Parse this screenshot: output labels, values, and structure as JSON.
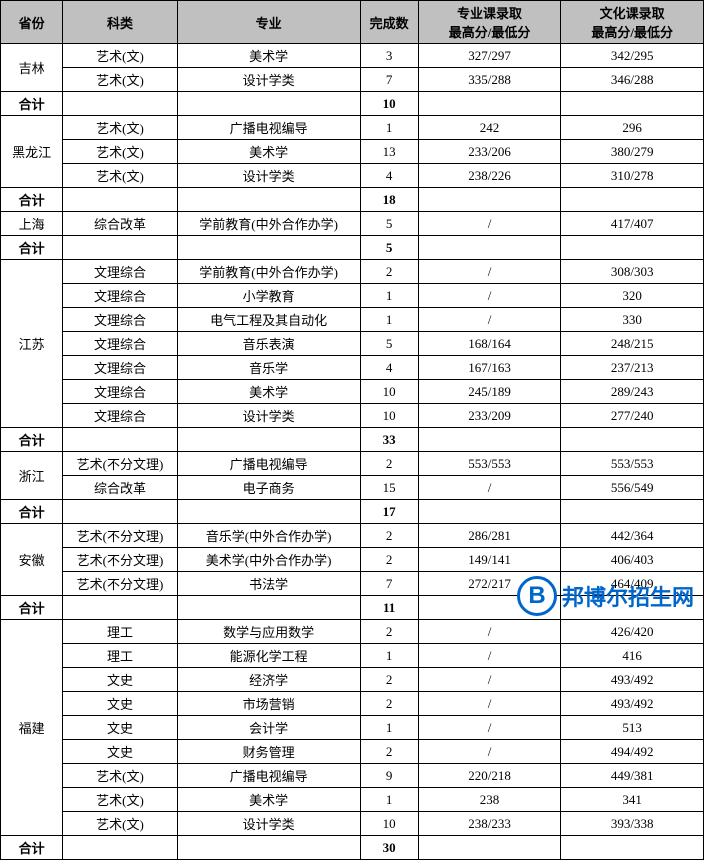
{
  "headers": {
    "province": "省份",
    "category": "科类",
    "major": "专业",
    "count": "完成数",
    "score1": "专业课录取\n最高分/最低分",
    "score2": "文化课录取\n最高分/最低分"
  },
  "subtotal_label": "合计",
  "colors": {
    "header_bg": "#c0c0c0",
    "border": "#000000",
    "watermark": "#0066cc"
  },
  "watermark": {
    "logo": "B",
    "text": "邦博尔招生网"
  },
  "provinces": [
    {
      "name": "吉林",
      "rows": [
        {
          "category": "艺术(文)",
          "major": "美术学",
          "count": "3",
          "s1": "327/297",
          "s2": "342/295"
        },
        {
          "category": "艺术(文)",
          "major": "设计学类",
          "count": "7",
          "s1": "335/288",
          "s2": "346/288"
        }
      ],
      "subtotal": "10"
    },
    {
      "name": "黑龙江",
      "rows": [
        {
          "category": "艺术(文)",
          "major": "广播电视编导",
          "count": "1",
          "s1": "242",
          "s2": "296"
        },
        {
          "category": "艺术(文)",
          "major": "美术学",
          "count": "13",
          "s1": "233/206",
          "s2": "380/279"
        },
        {
          "category": "艺术(文)",
          "major": "设计学类",
          "count": "4",
          "s1": "238/226",
          "s2": "310/278"
        }
      ],
      "subtotal": "18"
    },
    {
      "name": "上海",
      "rows": [
        {
          "category": "综合改革",
          "major": "学前教育(中外合作办学)",
          "count": "5",
          "s1": "/",
          "s2": "417/407"
        }
      ],
      "subtotal": "5"
    },
    {
      "name": "江苏",
      "rows": [
        {
          "category": "文理综合",
          "major": "学前教育(中外合作办学)",
          "count": "2",
          "s1": "/",
          "s2": "308/303"
        },
        {
          "category": "文理综合",
          "major": "小学教育",
          "count": "1",
          "s1": "/",
          "s2": "320"
        },
        {
          "category": "文理综合",
          "major": "电气工程及其自动化",
          "count": "1",
          "s1": "/",
          "s2": "330"
        },
        {
          "category": "文理综合",
          "major": "音乐表演",
          "count": "5",
          "s1": "168/164",
          "s2": "248/215"
        },
        {
          "category": "文理综合",
          "major": "音乐学",
          "count": "4",
          "s1": "167/163",
          "s2": "237/213"
        },
        {
          "category": "文理综合",
          "major": "美术学",
          "count": "10",
          "s1": "245/189",
          "s2": "289/243"
        },
        {
          "category": "文理综合",
          "major": "设计学类",
          "count": "10",
          "s1": "233/209",
          "s2": "277/240"
        }
      ],
      "subtotal": "33"
    },
    {
      "name": "浙江",
      "rows": [
        {
          "category": "艺术(不分文理)",
          "major": "广播电视编导",
          "count": "2",
          "s1": "553/553",
          "s2": "553/553"
        },
        {
          "category": "综合改革",
          "major": "电子商务",
          "count": "15",
          "s1": "/",
          "s2": "556/549"
        }
      ],
      "subtotal": "17"
    },
    {
      "name": "安徽",
      "rows": [
        {
          "category": "艺术(不分文理)",
          "major": "音乐学(中外合作办学)",
          "count": "2",
          "s1": "286/281",
          "s2": "442/364"
        },
        {
          "category": "艺术(不分文理)",
          "major": "美术学(中外合作办学)",
          "count": "2",
          "s1": "149/141",
          "s2": "406/403"
        },
        {
          "category": "艺术(不分文理)",
          "major": "书法学",
          "count": "7",
          "s1": "272/217",
          "s2": "464/409"
        }
      ],
      "subtotal": "11"
    },
    {
      "name": "福建",
      "rows": [
        {
          "category": "理工",
          "major": "数学与应用数学",
          "count": "2",
          "s1": "/",
          "s2": "426/420"
        },
        {
          "category": "理工",
          "major": "能源化学工程",
          "count": "1",
          "s1": "/",
          "s2": "416"
        },
        {
          "category": "文史",
          "major": "经济学",
          "count": "2",
          "s1": "/",
          "s2": "493/492"
        },
        {
          "category": "文史",
          "major": "市场营销",
          "count": "2",
          "s1": "/",
          "s2": "493/492"
        },
        {
          "category": "文史",
          "major": "会计学",
          "count": "1",
          "s1": "/",
          "s2": "513"
        },
        {
          "category": "文史",
          "major": "财务管理",
          "count": "2",
          "s1": "/",
          "s2": "494/492"
        },
        {
          "category": "艺术(文)",
          "major": "广播电视编导",
          "count": "9",
          "s1": "220/218",
          "s2": "449/381"
        },
        {
          "category": "艺术(文)",
          "major": "美术学",
          "count": "1",
          "s1": "238",
          "s2": "341"
        },
        {
          "category": "艺术(文)",
          "major": "设计学类",
          "count": "10",
          "s1": "238/233",
          "s2": "393/338"
        }
      ],
      "subtotal": "30"
    }
  ]
}
